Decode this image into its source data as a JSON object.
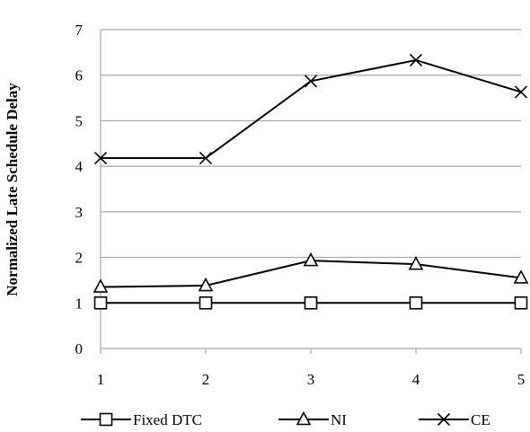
{
  "chart_data": {
    "type": "line",
    "ylabel": "Normalized Late Schedule Delay",
    "xlabel": "",
    "x": [
      1,
      2,
      3,
      4,
      5
    ],
    "ylim": [
      0,
      7
    ],
    "yticks": [
      0,
      1,
      2,
      3,
      4,
      5,
      6,
      7
    ],
    "grid": true,
    "legend_position": "bottom",
    "series": [
      {
        "name": "Fixed DTC",
        "marker": "square",
        "values": [
          1,
          1,
          1,
          1,
          1
        ]
      },
      {
        "name": "NI",
        "marker": "triangle",
        "values": [
          1.35,
          1.38,
          1.93,
          1.85,
          1.55
        ]
      },
      {
        "name": "CE",
        "marker": "x",
        "values": [
          4.18,
          4.18,
          5.87,
          6.33,
          5.63
        ]
      }
    ]
  }
}
